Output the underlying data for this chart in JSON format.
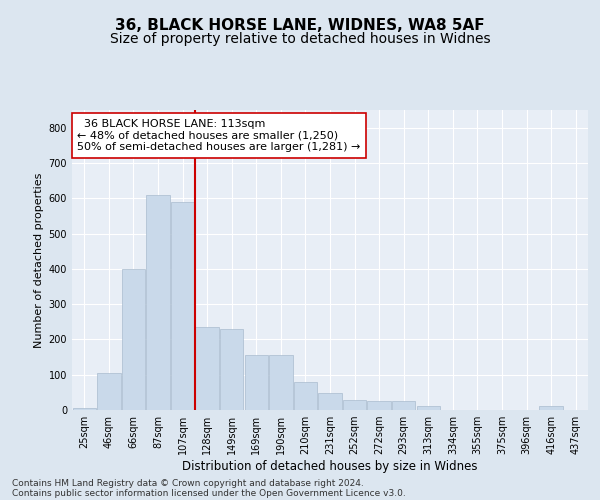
{
  "title1": "36, BLACK HORSE LANE, WIDNES, WA8 5AF",
  "title2": "Size of property relative to detached houses in Widnes",
  "xlabel": "Distribution of detached houses by size in Widnes",
  "ylabel": "Number of detached properties",
  "annotation_line1": "  36 BLACK HORSE LANE: 113sqm  ",
  "annotation_line2": "← 48% of detached houses are smaller (1,250)",
  "annotation_line3": "50% of semi-detached houses are larger (1,281) →",
  "footer1": "Contains HM Land Registry data © Crown copyright and database right 2024.",
  "footer2": "Contains public sector information licensed under the Open Government Licence v3.0.",
  "bar_color": "#c9d9ea",
  "bar_edgecolor": "#aabcce",
  "vline_color": "#cc0000",
  "annotation_box_edgecolor": "#cc0000",
  "annotation_box_facecolor": "#ffffff",
  "bg_color": "#dce6f0",
  "plot_bg_color": "#e8eef6",
  "grid_color": "#ffffff",
  "categories": [
    "25sqm",
    "46sqm",
    "66sqm",
    "87sqm",
    "107sqm",
    "128sqm",
    "149sqm",
    "169sqm",
    "190sqm",
    "210sqm",
    "231sqm",
    "252sqm",
    "272sqm",
    "293sqm",
    "313sqm",
    "334sqm",
    "355sqm",
    "375sqm",
    "396sqm",
    "416sqm",
    "437sqm"
  ],
  "values": [
    5,
    105,
    400,
    610,
    590,
    235,
    230,
    155,
    155,
    80,
    47,
    27,
    25,
    25,
    10,
    0,
    0,
    0,
    0,
    10,
    0
  ],
  "ylim": [
    0,
    850
  ],
  "yticks": [
    0,
    100,
    200,
    300,
    400,
    500,
    600,
    700,
    800
  ],
  "vline_x_index": 4.5,
  "title_fontsize": 11,
  "subtitle_fontsize": 10,
  "annotation_fontsize": 8,
  "footer_fontsize": 6.5,
  "tick_fontsize": 7,
  "ylabel_fontsize": 8,
  "xlabel_fontsize": 8.5
}
